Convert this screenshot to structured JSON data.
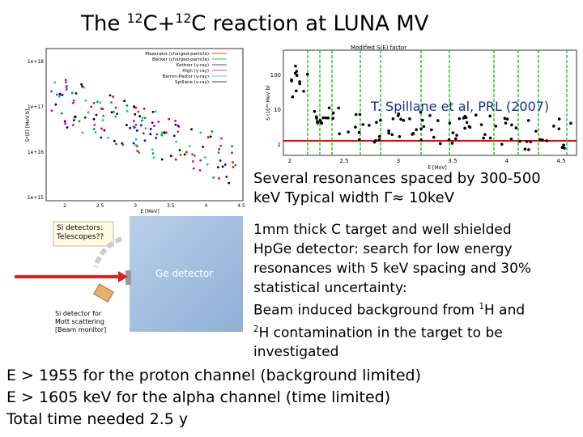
{
  "title": {
    "part1": "The ",
    "sup1": "12",
    "part2": "C+",
    "sup2": "12",
    "part3": "C reaction at LUNA MV"
  },
  "left_plot": {
    "legend": [
      "Mazarakis (charged-particle)",
      "Becker (charged-particle)",
      "Kettner (γ-ray)",
      "High (γ-ray)",
      "Barron-Pastor (γ-ray)",
      "Spillane (γ-ray)"
    ],
    "yticks": [
      "1e+18",
      "1e+17",
      "1e+16",
      "1e+15"
    ],
    "xticks": [
      "2",
      "2.5",
      "3",
      "3.5",
      "4",
      "4.5"
    ],
    "xlabel": "E [MeV]",
    "ylabel": "S*(E) [MeV b]"
  },
  "right_plot": {
    "title": "Modified S(E) factor",
    "yticks": [
      "100",
      "10",
      "1"
    ],
    "xticks": [
      "2",
      "2.5",
      "3",
      "3.5",
      "4",
      "4.5"
    ],
    "xlabel": "E [MeV]",
    "ylabel": "S (10¹⁶ MeV b)",
    "citation": "T. Spillane et al, PRL (2007)"
  },
  "resonances": [
    "Several resonances spaced by 300-500",
    "keV Typical width Γ≈ 10keV"
  ],
  "setup": {
    "si_telescopes": [
      "Si detectors:",
      "Telescopes??"
    ],
    "ge_detector": "Ge detector",
    "si_monitor": [
      "Si detector for",
      "Mott scattering",
      "[Beam monitor]"
    ]
  },
  "description": {
    "lines": [
      "1mm thick C target and well shielded",
      "HpGe detector: search for low energy",
      "resonances with 5 keV spacing and 30%",
      "statistical uncertainty:"
    ],
    "background": {
      "part1": "Beam induced background from ",
      "sup1": "1",
      "part2": "H and",
      "sup2": "2",
      "part3": "H contamination in the target to be",
      "part4": "investigated"
    }
  },
  "limits": [
    "E > 1955 for the proton channel (background limited)",
    "E > 1605 keV for the alpha channel (time limited)",
    "Total time needed 2.5 y"
  ]
}
